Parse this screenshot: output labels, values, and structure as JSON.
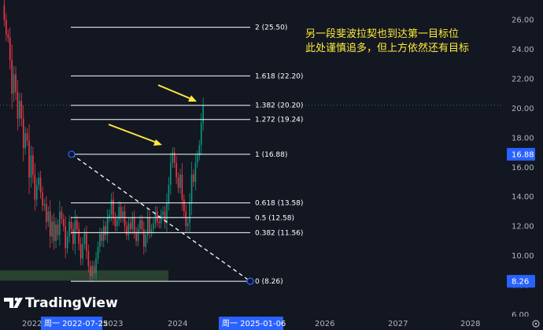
{
  "chart_data": {
    "type": "candlestick",
    "title": "",
    "y_axis": {
      "range": [
        5.2,
        27.0
      ],
      "ticks": [
        "26.00",
        "24.00",
        "22.00",
        "20.00",
        "18.00",
        "16.00",
        "14.00",
        "12.00",
        "10.00",
        "8.00",
        "6.00"
      ],
      "position": "right"
    },
    "x_axis": {
      "labels": [
        "2022",
        "2023",
        "2024",
        "2026",
        "2027",
        "2028"
      ]
    },
    "highlighted_x": [
      "周一 2022-07-25",
      "周一 2025-01-06"
    ],
    "price_badges": [
      {
        "label": "16.88",
        "value": 16.88
      },
      {
        "label": "8.26",
        "value": 8.26
      }
    ],
    "fibonacci": {
      "levels": [
        {
          "ratio": "2",
          "price": 25.5,
          "label": "2 (25.50)"
        },
        {
          "ratio": "1.618",
          "price": 22.2,
          "label": "1.618 (22.20)"
        },
        {
          "ratio": "1.382",
          "price": 20.2,
          "label": "1.382 (20.20)"
        },
        {
          "ratio": "1.272",
          "price": 19.24,
          "label": "1.272 (19.24)"
        },
        {
          "ratio": "1",
          "price": 16.88,
          "label": "1 (16.88)"
        },
        {
          "ratio": "0.618",
          "price": 13.58,
          "label": "0.618 (13.58)"
        },
        {
          "ratio": "0.5",
          "price": 12.58,
          "label": "0.5 (12.58)"
        },
        {
          "ratio": "0.382",
          "price": 11.56,
          "label": "0.382 (11.56)"
        },
        {
          "ratio": "0",
          "price": 8.26,
          "label": "0 (8.26)"
        }
      ],
      "anchor_high": 16.88,
      "anchor_low": 8.26
    },
    "support_zone": {
      "low": 8.3,
      "high": 9.0
    },
    "annotations": [
      "另一段斐波拉契也到达第一目标位",
      "此处谨慎追多，但上方依然还有目标"
    ],
    "series_close": [
      27.0,
      26.0,
      25.0,
      24.8,
      23.3,
      21.0,
      22.3,
      21.1,
      19.3,
      20.5,
      19.3,
      17.3,
      18.3,
      17.8,
      15.3,
      16.8,
      15.5,
      13.8,
      14.8,
      15.3,
      14.3,
      13.4,
      13.5,
      12.3,
      13.0,
      11.3,
      12.3,
      11.0,
      12.1,
      11.4,
      13.0,
      12.5,
      12.0,
      10.5,
      11.3,
      12.3,
      11.8,
      10.8,
      12.4,
      11.8,
      10.8,
      9.8,
      10.8,
      11.5,
      10.3,
      9.3,
      8.6,
      9.3,
      8.8,
      9.8,
      10.6,
      11.5,
      11.0,
      12.0,
      11.4,
      12.6,
      12.8,
      13.8,
      12.6,
      12.0,
      12.4,
      13.3,
      12.6,
      13.0,
      12.0,
      11.4,
      12.2,
      11.8,
      12.6,
      11.6,
      11.0,
      11.8,
      12.4,
      11.8,
      10.6,
      11.4,
      12.6,
      11.6,
      11.8,
      12.2,
      13.0,
      12.3,
      12.2,
      12.8,
      13.0,
      12.2,
      13.6,
      14.8,
      16.3,
      17.0,
      16.3,
      15.3,
      14.6,
      15.5,
      13.8,
      13.0,
      12.0,
      12.2,
      13.6,
      15.5,
      15.0,
      16.3,
      16.8,
      17.5,
      19.0,
      20.2
    ],
    "colors": {
      "up": "#089981",
      "down": "#f23645",
      "fib_line": "#ffffff",
      "trend_line": "#ffffff",
      "arrow": "#ffeb3b",
      "badge": "#2962ff",
      "zone": "#2e4a32"
    }
  },
  "branding": {
    "logo_text": "TradingView"
  }
}
